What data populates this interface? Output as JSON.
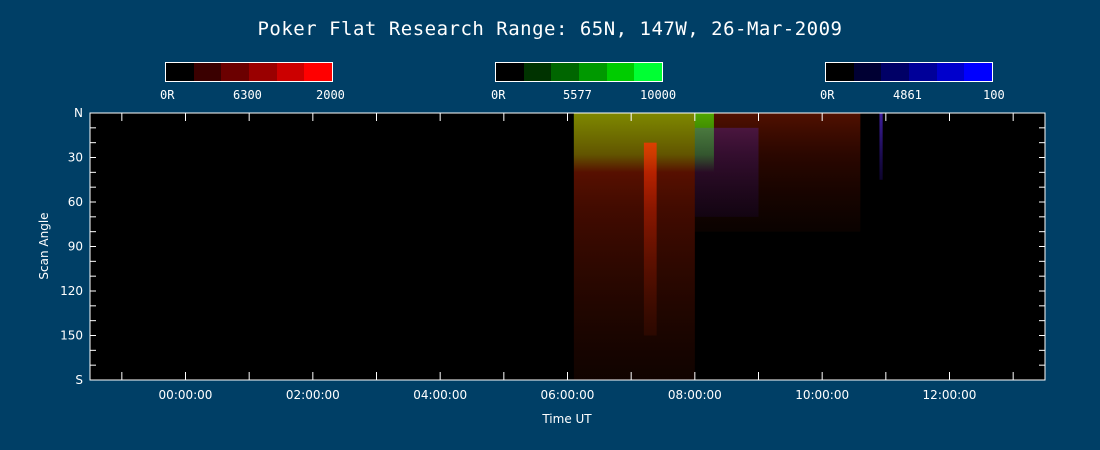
{
  "title": "Poker Flat Research Range: 65N, 147W, 26-Mar-2009",
  "colorbars": [
    {
      "min_label": "0R",
      "wavelength_label": "6300",
      "max_label": "2000",
      "colors": [
        "#000000",
        "#3a0000",
        "#6b0000",
        "#9a0000",
        "#cc0000",
        "#ff0000"
      ]
    },
    {
      "min_label": "0R",
      "wavelength_label": "5577",
      "max_label": "10000",
      "colors": [
        "#000000",
        "#003300",
        "#006600",
        "#009900",
        "#00cc00",
        "#00ff33"
      ]
    },
    {
      "min_label": "0R",
      "wavelength_label": "4861",
      "max_label": "100",
      "colors": [
        "#000000",
        "#000033",
        "#000066",
        "#000099",
        "#0000cc",
        "#0000ff"
      ]
    }
  ],
  "chart_data": {
    "type": "heatmap",
    "title": "Poker Flat Research Range: 65N, 147W, 26-Mar-2009",
    "xlabel": "Time UT",
    "ylabel": "Scan Angle",
    "x_ticks": [
      "00:00:00",
      "02:00:00",
      "04:00:00",
      "06:00:00",
      "08:00:00",
      "10:00:00",
      "12:00:00"
    ],
    "x_tick_hours": [
      0,
      2,
      4,
      6,
      8,
      10,
      12
    ],
    "xlim_hours": [
      -1.5,
      13.5
    ],
    "y_ticks": [
      "N",
      "30",
      "60",
      "90",
      "120",
      "150",
      "S"
    ],
    "y_tick_values": [
      0,
      30,
      60,
      90,
      120,
      150,
      180
    ],
    "ylim": [
      0,
      180
    ],
    "grid": false,
    "channels": [
      {
        "color": "red",
        "wavelength": "6300",
        "max": 2000
      },
      {
        "color": "green",
        "wavelength": "5577",
        "max": 10000
      },
      {
        "color": "blue",
        "wavelength": "4861",
        "max": 100
      }
    ],
    "data_coverage_hours": [
      6.1,
      12.9
    ],
    "features": [
      {
        "channel": "green",
        "t_start": 6.1,
        "t_end": 8.3,
        "angle_start": 0,
        "angle_end": 40,
        "intensity": 0.9
      },
      {
        "channel": "red",
        "t_start": 6.1,
        "t_end": 8.0,
        "angle_start": 0,
        "angle_end": 180,
        "intensity": 0.55
      },
      {
        "channel": "red",
        "t_start": 7.2,
        "t_end": 7.4,
        "angle_start": 20,
        "angle_end": 150,
        "intensity": 0.85
      },
      {
        "channel": "red",
        "t_start": 8.0,
        "t_end": 10.6,
        "angle_start": 0,
        "angle_end": 80,
        "intensity": 0.35
      },
      {
        "channel": "blue",
        "t_start": 8.0,
        "t_end": 9.0,
        "angle_start": 10,
        "angle_end": 70,
        "intensity": 0.35
      },
      {
        "channel": "blue",
        "t_start": 10.9,
        "t_end": 10.95,
        "angle_start": 0,
        "angle_end": 45,
        "intensity": 0.9
      }
    ]
  }
}
